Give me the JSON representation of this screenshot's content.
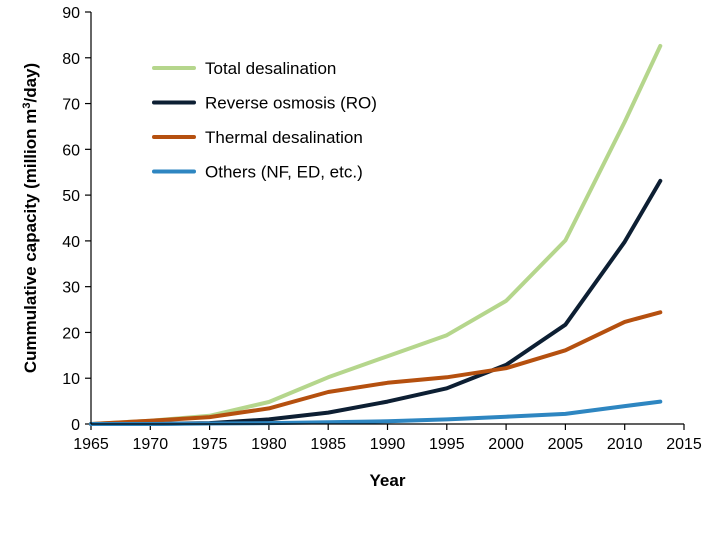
{
  "chart_data": {
    "type": "line",
    "title": "",
    "xlabel": "Year",
    "ylabel": "Cummulative capacity (million m³/day)",
    "ylabel_parts": {
      "main": "Cummulative capacity (million m",
      "sup": "3",
      "tail": "/day)"
    },
    "xlim": [
      1965,
      2015
    ],
    "ylim": [
      0,
      90
    ],
    "x_ticks": [
      1965,
      1970,
      1975,
      1980,
      1985,
      1990,
      1995,
      2000,
      2005,
      2010,
      2015
    ],
    "y_ticks": [
      0,
      10,
      20,
      30,
      40,
      50,
      60,
      70,
      80,
      90
    ],
    "grid": false,
    "legend_position": "top-left",
    "series": [
      {
        "name": "Total desalination",
        "color": "#b5d68c",
        "points": [
          [
            1965,
            0
          ],
          [
            1970,
            0.7
          ],
          [
            1975,
            1.8
          ],
          [
            1980,
            4.8
          ],
          [
            1985,
            10.2
          ],
          [
            1990,
            14.8
          ],
          [
            1995,
            19.4
          ],
          [
            2000,
            26.9
          ],
          [
            2005,
            40.1
          ],
          [
            2010,
            66.0
          ],
          [
            2013,
            82.6
          ]
        ]
      },
      {
        "name": "Reverse osmosis (RO)",
        "color": "#0d1f33",
        "points": [
          [
            1965,
            0
          ],
          [
            1970,
            0
          ],
          [
            1975,
            0.2
          ],
          [
            1980,
            1.0
          ],
          [
            1985,
            2.5
          ],
          [
            1990,
            4.9
          ],
          [
            1995,
            7.8
          ],
          [
            2000,
            12.9
          ],
          [
            2005,
            21.7
          ],
          [
            2010,
            39.8
          ],
          [
            2013,
            53.1
          ]
        ]
      },
      {
        "name": "Thermal desalination",
        "color": "#b5500f",
        "points": [
          [
            1965,
            0
          ],
          [
            1970,
            0.7
          ],
          [
            1975,
            1.5
          ],
          [
            1980,
            3.4
          ],
          [
            1985,
            7.0
          ],
          [
            1990,
            9.0
          ],
          [
            1995,
            10.2
          ],
          [
            2000,
            12.2
          ],
          [
            2005,
            16.1
          ],
          [
            2010,
            22.3
          ],
          [
            2013,
            24.4
          ]
        ]
      },
      {
        "name": "Others (NF, ED, etc.)",
        "color": "#2e86c1",
        "points": [
          [
            1965,
            0
          ],
          [
            1970,
            0
          ],
          [
            1975,
            0.1
          ],
          [
            1980,
            0.2
          ],
          [
            1985,
            0.4
          ],
          [
            1990,
            0.6
          ],
          [
            1995,
            1.0
          ],
          [
            2000,
            1.6
          ],
          [
            2005,
            2.2
          ],
          [
            2010,
            3.9
          ],
          [
            2013,
            4.9
          ]
        ]
      }
    ]
  }
}
